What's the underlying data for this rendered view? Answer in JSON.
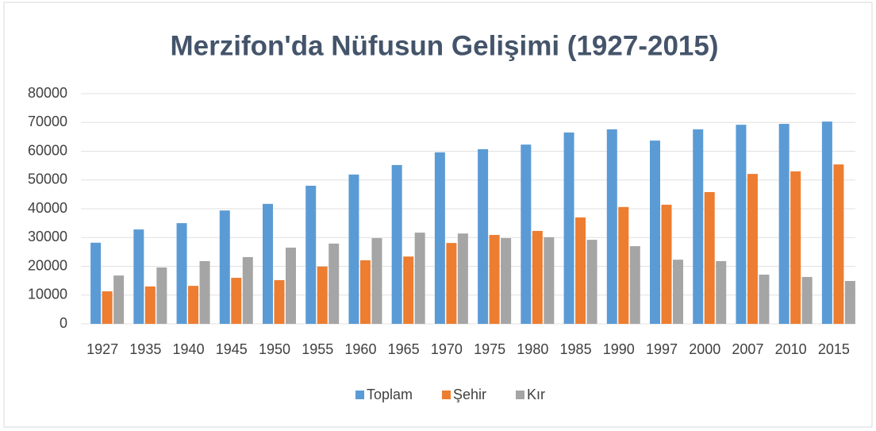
{
  "chart_data": {
    "type": "bar",
    "title": "Merzifon'da Nüfusun Gelişimi (1927-2015)",
    "categories": [
      "1927",
      "1935",
      "1940",
      "1945",
      "1950",
      "1955",
      "1960",
      "1965",
      "1970",
      "1975",
      "1980",
      "1985",
      "1990",
      "1997",
      "2000",
      "2007",
      "2010",
      "2015"
    ],
    "series": [
      {
        "name": "Toplam",
        "color": "#5b9bd5",
        "values": [
          28200,
          32800,
          35000,
          39400,
          41700,
          48000,
          51900,
          55200,
          59600,
          60700,
          62300,
          66500,
          67600,
          63700,
          67600,
          69200,
          69500,
          70300
        ]
      },
      {
        "name": "Şehir",
        "color": "#ed7d31",
        "values": [
          11300,
          13000,
          13200,
          16000,
          15200,
          19900,
          22100,
          23400,
          28100,
          30900,
          32300,
          37000,
          40600,
          41400,
          45800,
          52100,
          53000,
          55400
        ]
      },
      {
        "name": "Kır",
        "color": "#a5a5a5",
        "values": [
          16800,
          19600,
          21800,
          23200,
          26500,
          27900,
          29800,
          31700,
          31400,
          29800,
          30100,
          29200,
          27000,
          22300,
          21800,
          17100,
          16300,
          14900
        ]
      }
    ],
    "ylim": [
      0,
      80000
    ],
    "yticks": [
      0,
      10000,
      20000,
      30000,
      40000,
      50000,
      60000,
      70000,
      80000
    ],
    "grid": true,
    "legend": "bottom"
  }
}
